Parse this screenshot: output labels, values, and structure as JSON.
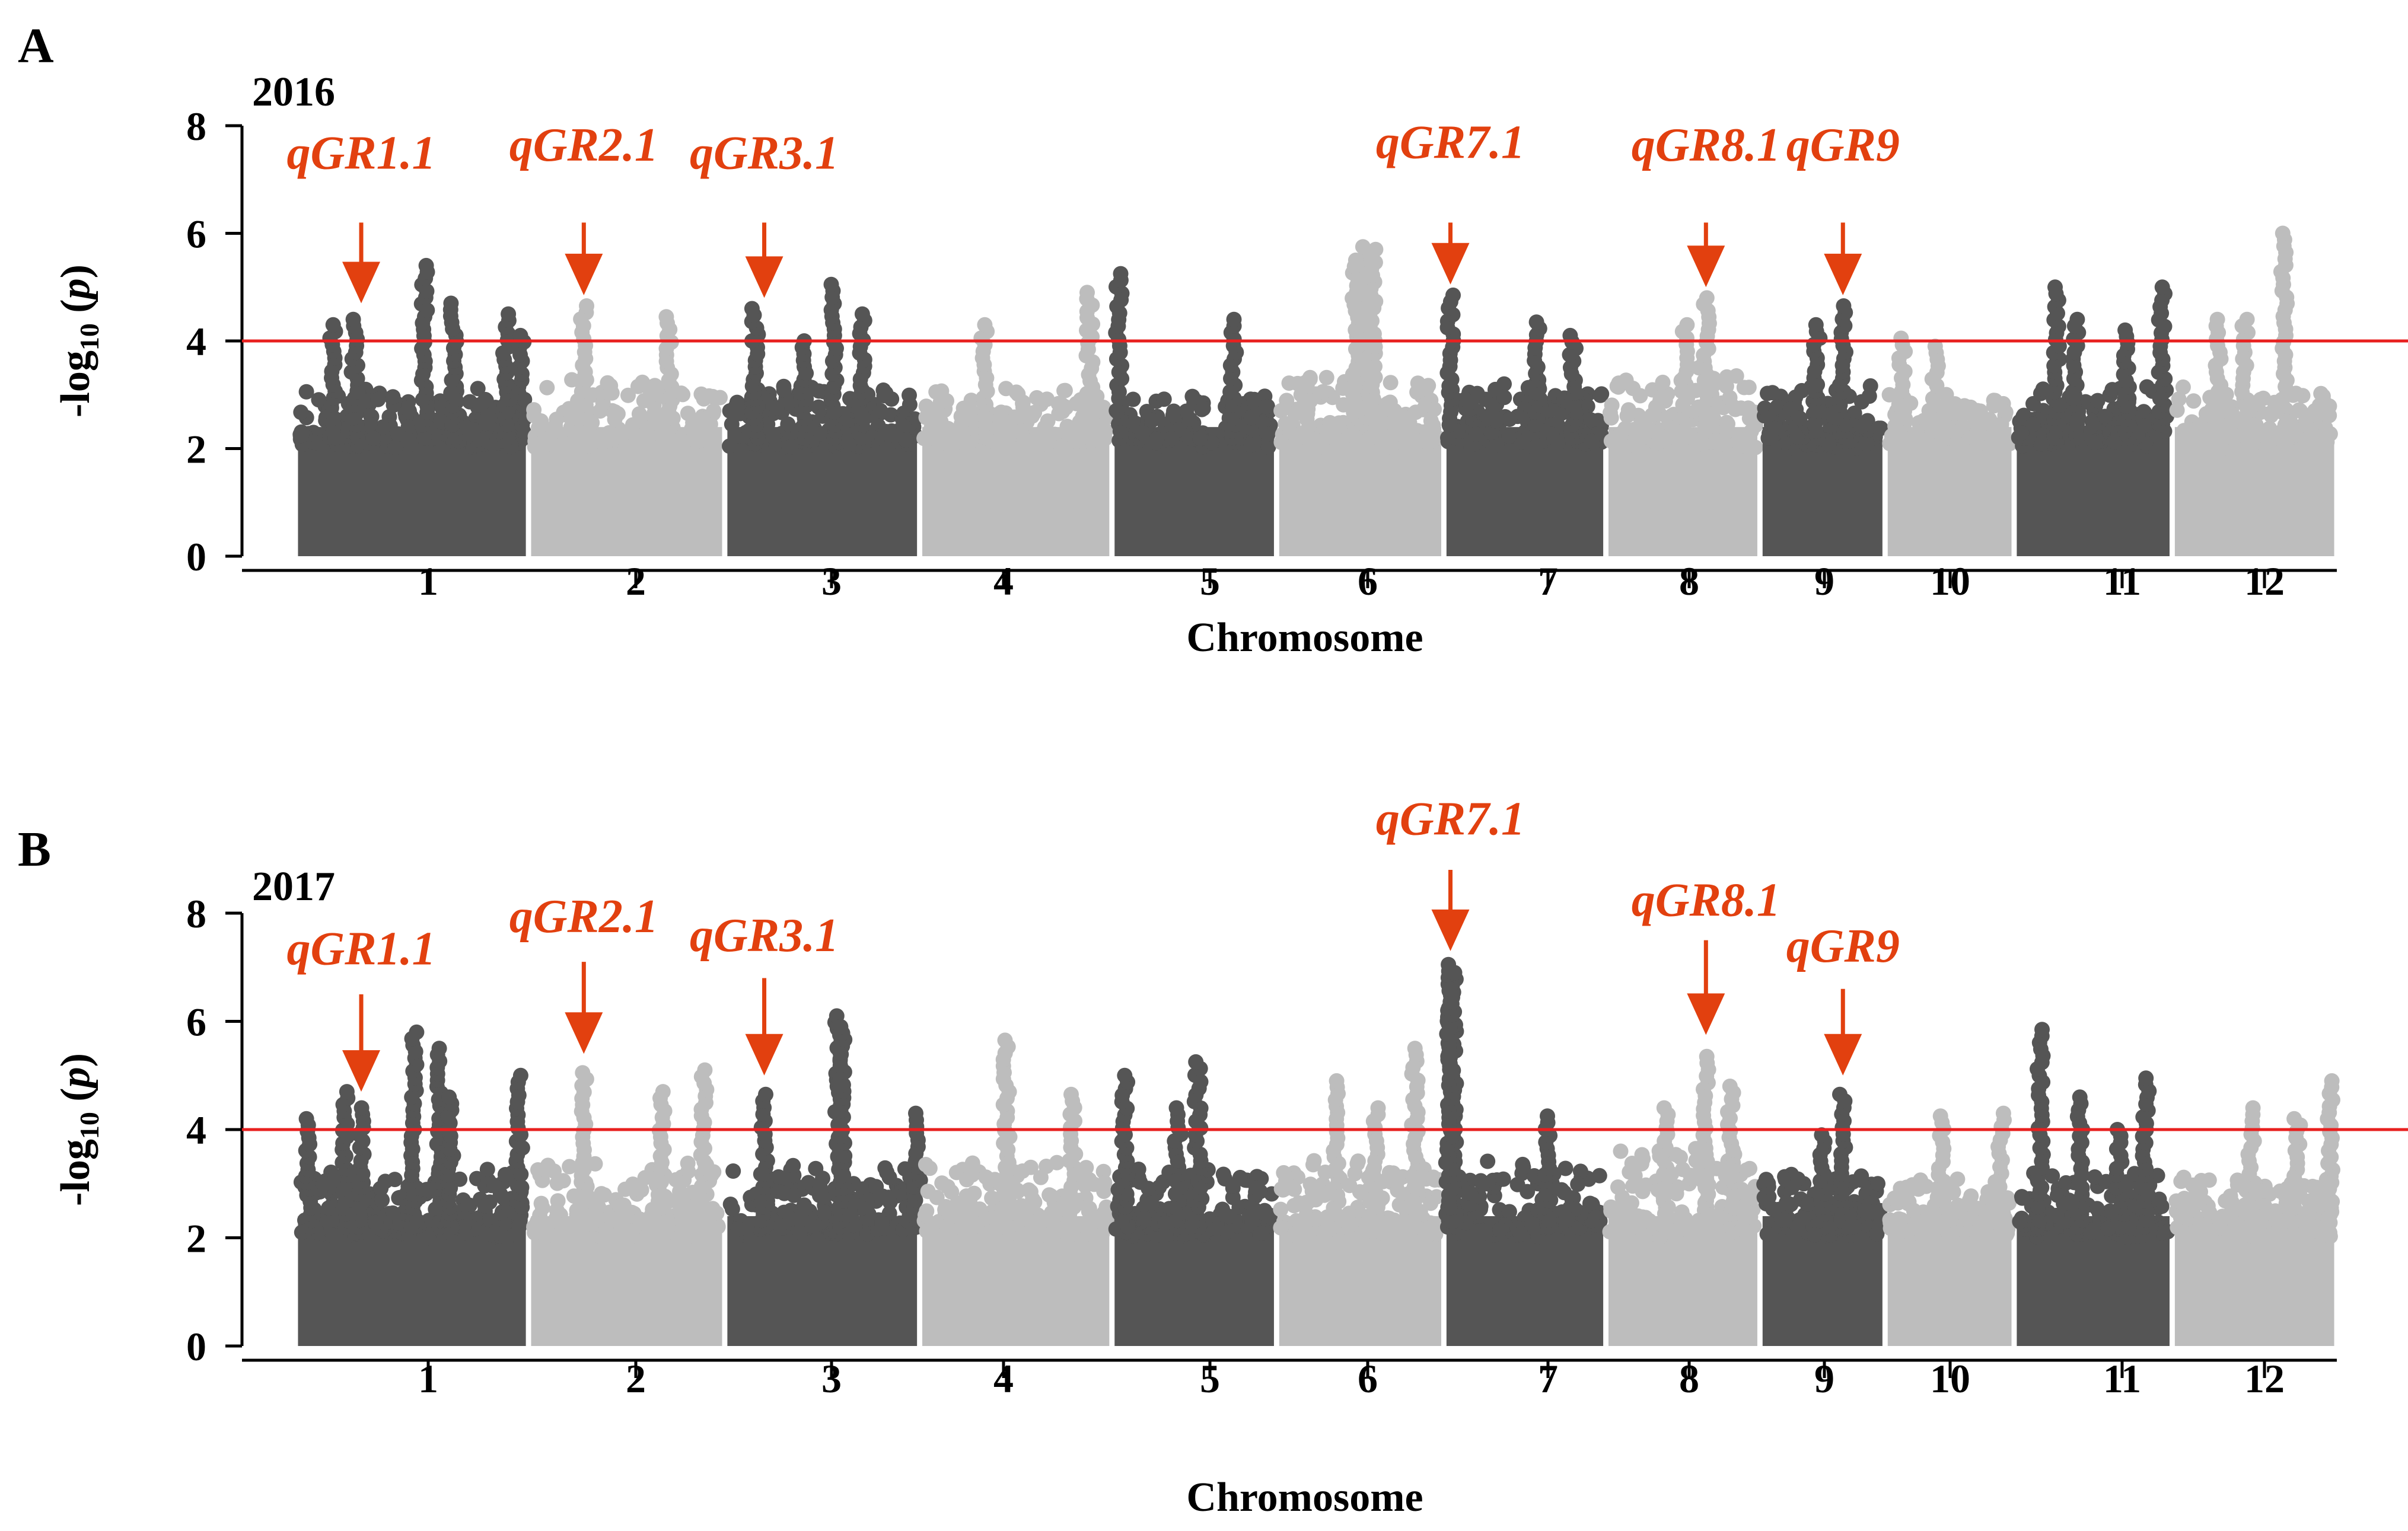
{
  "chart_data": [
    {
      "type": "scatter",
      "panel": "A",
      "title": "2016",
      "xlabel": "Chromosome",
      "ylabel_prefix": "-log",
      "ylabel_sub": "10",
      "ylabel_suffix": " (p)",
      "ylim": [
        0,
        8
      ],
      "yticks": [
        "0",
        "2",
        "4",
        "6",
        "8"
      ],
      "threshold": 4,
      "colors": {
        "dark": "#555555",
        "light": "#bdbdbd",
        "threshold": "#e8201f",
        "annotation": "#e2400f"
      },
      "chromosomes": [
        {
          "label": "1",
          "start": 0.0,
          "end": 1.77,
          "shade": "dark",
          "baseTop": 3.0,
          "peaks": [
            [
              0.45,
              4.4
            ],
            [
              0.28,
              4.3
            ],
            [
              0.98,
              5.4
            ],
            [
              1.2,
              4.7
            ],
            [
              1.6,
              4.5
            ],
            [
              1.72,
              4.1
            ]
          ]
        },
        {
          "label": "2",
          "start": 1.77,
          "end": 3.26,
          "shade": "light",
          "baseTop": 3.1,
          "peaks": [
            [
              2.19,
              4.65
            ],
            [
              2.84,
              4.45
            ]
          ]
        },
        {
          "label": "3",
          "start": 3.26,
          "end": 4.74,
          "shade": "dark",
          "baseTop": 3.0,
          "peaks": [
            [
              3.49,
              4.6
            ],
            [
              4.09,
              5.05
            ],
            [
              4.3,
              4.5
            ],
            [
              3.86,
              4.0
            ]
          ]
        },
        {
          "label": "4",
          "start": 4.74,
          "end": 6.2,
          "shade": "light",
          "baseTop": 2.9,
          "peaks": [
            [
              5.23,
              4.3
            ],
            [
              6.03,
              4.9
            ]
          ]
        },
        {
          "label": "5",
          "start": 6.2,
          "end": 7.45,
          "shade": "dark",
          "baseTop": 2.8,
          "peaks": [
            [
              6.25,
              5.25
            ],
            [
              7.12,
              4.4
            ]
          ]
        },
        {
          "label": "6",
          "start": 7.45,
          "end": 8.72,
          "shade": "light",
          "baseTop": 3.2,
          "peaks": [
            [
              8.12,
              5.75
            ],
            [
              8.18,
              5.7
            ],
            [
              8.05,
              5.5
            ]
          ]
        },
        {
          "label": "7",
          "start": 8.72,
          "end": 9.95,
          "shade": "dark",
          "baseTop": 3.0,
          "peaks": [
            [
              8.77,
              4.85
            ],
            [
              9.43,
              4.35
            ],
            [
              9.7,
              4.1
            ]
          ]
        },
        {
          "label": "8",
          "start": 9.95,
          "end": 11.12,
          "shade": "light",
          "baseTop": 3.3,
          "peaks": [
            [
              10.71,
              4.8
            ],
            [
              10.55,
              4.3
            ]
          ]
        },
        {
          "label": "9",
          "start": 11.12,
          "end": 12.07,
          "shade": "dark",
          "baseTop": 3.0,
          "peaks": [
            [
              11.75,
              4.65
            ],
            [
              11.55,
              4.3
            ]
          ]
        },
        {
          "label": "10",
          "start": 12.07,
          "end": 13.05,
          "shade": "light",
          "baseTop": 2.8,
          "peaks": [
            [
              12.2,
              4.05
            ],
            [
              12.45,
              3.9
            ]
          ]
        },
        {
          "label": "11",
          "start": 13.05,
          "end": 14.25,
          "shade": "dark",
          "baseTop": 3.1,
          "peaks": [
            [
              13.37,
              5.0
            ],
            [
              13.52,
              4.4
            ],
            [
              13.9,
              4.2
            ],
            [
              14.17,
              5.0
            ]
          ]
        },
        {
          "label": "12",
          "start": 14.25,
          "end": 15.5,
          "shade": "light",
          "baseTop": 2.9,
          "peaks": [
            [
              15.1,
              6.0
            ],
            [
              14.6,
              4.4
            ],
            [
              14.8,
              4.4
            ]
          ]
        }
      ],
      "annotations": [
        {
          "label": "qGR1.1",
          "x": 0.5,
          "tip": 4.7,
          "tail": 6.2,
          "labelY": 7.2
        },
        {
          "label": "qGR2.1",
          "x": 2.19,
          "tip": 4.85,
          "tail": 6.2,
          "labelY": 7.35
        },
        {
          "label": "qGR3.1",
          "x": 3.56,
          "tip": 4.8,
          "tail": 6.2,
          "labelY": 7.2
        },
        {
          "label": "qGR7.1",
          "x": 8.77,
          "tip": 5.05,
          "tail": 6.2,
          "labelY": 7.4
        },
        {
          "label": "qGR8.1",
          "x": 10.71,
          "tip": 5.0,
          "tail": 6.2,
          "labelY": 7.35
        },
        {
          "label": "qGR9",
          "x": 11.75,
          "tip": 4.85,
          "tail": 6.2,
          "labelY": 7.35
        }
      ]
    },
    {
      "type": "scatter",
      "panel": "B",
      "title": "2017",
      "xlabel": "Chromosome",
      "ylabel_prefix": "-log",
      "ylabel_sub": "10",
      "ylabel_suffix": " (p)",
      "ylim": [
        0,
        8
      ],
      "yticks": [
        "0",
        "2",
        "4",
        "6",
        "8"
      ],
      "threshold": 4,
      "colors": {
        "dark": "#555555",
        "light": "#bdbdbd",
        "threshold": "#e8201f",
        "annotation": "#e2400f"
      },
      "chromosomes": [
        {
          "label": "1",
          "start": 0.0,
          "end": 1.77,
          "shade": "dark",
          "baseTop": 3.1,
          "peaks": [
            [
              0.5,
              4.4
            ],
            [
              0.38,
              4.7
            ],
            [
              0.9,
              5.8
            ],
            [
              1.1,
              5.5
            ],
            [
              1.18,
              4.6
            ],
            [
              1.7,
              5.0
            ],
            [
              0.1,
              4.2
            ]
          ]
        },
        {
          "label": "2",
          "start": 1.77,
          "end": 3.26,
          "shade": "light",
          "baseTop": 3.2,
          "peaks": [
            [
              2.19,
              5.05
            ],
            [
              2.78,
              4.7
            ],
            [
              3.1,
              5.1
            ]
          ]
        },
        {
          "label": "3",
          "start": 3.26,
          "end": 4.74,
          "shade": "dark",
          "baseTop": 3.2,
          "peaks": [
            [
              3.56,
              4.65
            ],
            [
              4.12,
              6.1
            ],
            [
              4.15,
              5.9
            ],
            [
              4.72,
              4.3
            ]
          ]
        },
        {
          "label": "4",
          "start": 4.74,
          "end": 6.2,
          "shade": "light",
          "baseTop": 3.2,
          "peaks": [
            [
              5.4,
              5.65
            ],
            [
              5.9,
              4.65
            ]
          ]
        },
        {
          "label": "5",
          "start": 6.2,
          "end": 7.45,
          "shade": "dark",
          "baseTop": 3.1,
          "peaks": [
            [
              6.3,
              5.0
            ],
            [
              6.85,
              5.25
            ],
            [
              6.7,
              4.4
            ]
          ]
        },
        {
          "label": "6",
          "start": 7.45,
          "end": 8.72,
          "shade": "light",
          "baseTop": 3.3,
          "peaks": [
            [
              8.5,
              5.5
            ],
            [
              7.9,
              4.9
            ],
            [
              8.2,
              4.4
            ]
          ]
        },
        {
          "label": "7",
          "start": 8.72,
          "end": 9.95,
          "shade": "dark",
          "baseTop": 3.2,
          "peaks": [
            [
              8.77,
              7.05
            ],
            [
              8.79,
              6.9
            ],
            [
              8.76,
              6.6
            ],
            [
              9.5,
              4.25
            ]
          ]
        },
        {
          "label": "8",
          "start": 9.95,
          "end": 11.12,
          "shade": "light",
          "baseTop": 3.6,
          "peaks": [
            [
              10.71,
              5.35
            ],
            [
              10.9,
              4.8
            ],
            [
              10.4,
              4.4
            ]
          ]
        },
        {
          "label": "9",
          "start": 11.12,
          "end": 12.07,
          "shade": "dark",
          "baseTop": 3.0,
          "peaks": [
            [
              11.75,
              4.65
            ],
            [
              11.6,
              3.9
            ]
          ]
        },
        {
          "label": "10",
          "start": 12.07,
          "end": 13.05,
          "shade": "light",
          "baseTop": 2.9,
          "peaks": [
            [
              12.5,
              4.25
            ],
            [
              12.95,
              4.3
            ]
          ]
        },
        {
          "label": "11",
          "start": 13.05,
          "end": 14.25,
          "shade": "dark",
          "baseTop": 3.1,
          "peaks": [
            [
              13.25,
              5.85
            ],
            [
              13.55,
              4.6
            ],
            [
              14.05,
              4.95
            ],
            [
              13.85,
              4.0
            ]
          ]
        },
        {
          "label": "12",
          "start": 14.25,
          "end": 15.5,
          "shade": "light",
          "baseTop": 3.0,
          "peaks": [
            [
              14.85,
              4.4
            ],
            [
              15.45,
              4.9
            ],
            [
              15.2,
              4.2
            ]
          ]
        }
      ],
      "annotations": [
        {
          "label": "qGR1.1",
          "x": 0.5,
          "tip": 4.7,
          "tail": 6.5,
          "labelY": 7.05
        },
        {
          "label": "qGR2.1",
          "x": 2.19,
          "tip": 5.4,
          "tail": 7.1,
          "labelY": 7.65
        },
        {
          "label": "qGR3.1",
          "x": 3.56,
          "tip": 5.0,
          "tail": 6.8,
          "labelY": 7.3
        },
        {
          "label": "qGR7.1",
          "x": 8.77,
          "tip": 7.3,
          "tail": 8.8,
          "labelY": 9.45
        },
        {
          "label": "qGR8.1",
          "x": 10.71,
          "tip": 5.75,
          "tail": 7.5,
          "labelY": 7.95
        },
        {
          "label": "qGR9",
          "x": 11.75,
          "tip": 5.0,
          "tail": 6.6,
          "labelY": 7.1
        }
      ]
    }
  ]
}
